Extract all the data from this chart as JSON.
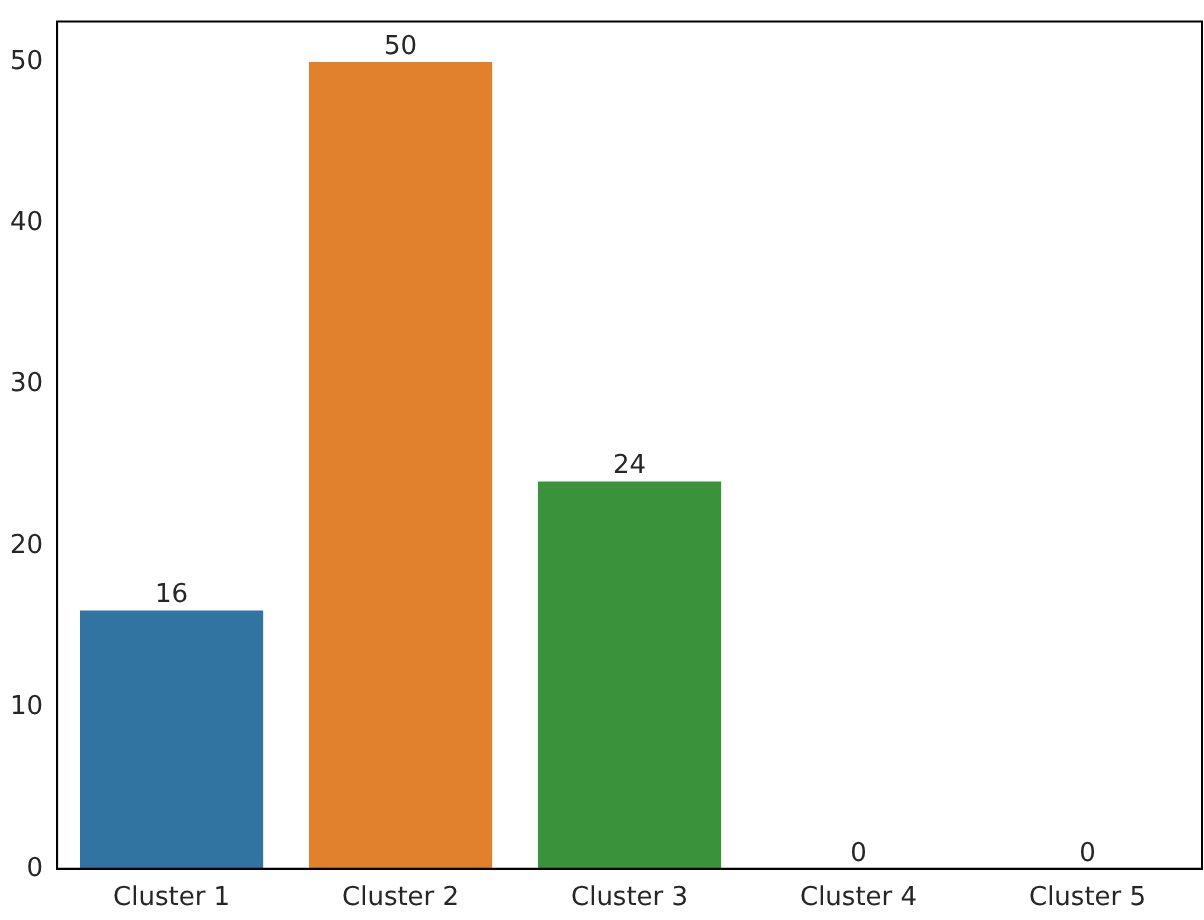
{
  "chart_data": {
    "type": "bar",
    "categories": [
      "Cluster 1",
      "Cluster 2",
      "Cluster 3",
      "Cluster 4",
      "Cluster 5"
    ],
    "values": [
      16,
      50,
      24,
      0,
      0
    ],
    "colors": [
      "#3274a1",
      "#e1812c",
      "#3a923a",
      "#c03d3e",
      "#9372b2"
    ],
    "ylim": [
      0,
      52.5
    ],
    "yticks": [
      0,
      10,
      20,
      30,
      40,
      50
    ],
    "grid": false,
    "legend": false,
    "data_labels": true
  }
}
